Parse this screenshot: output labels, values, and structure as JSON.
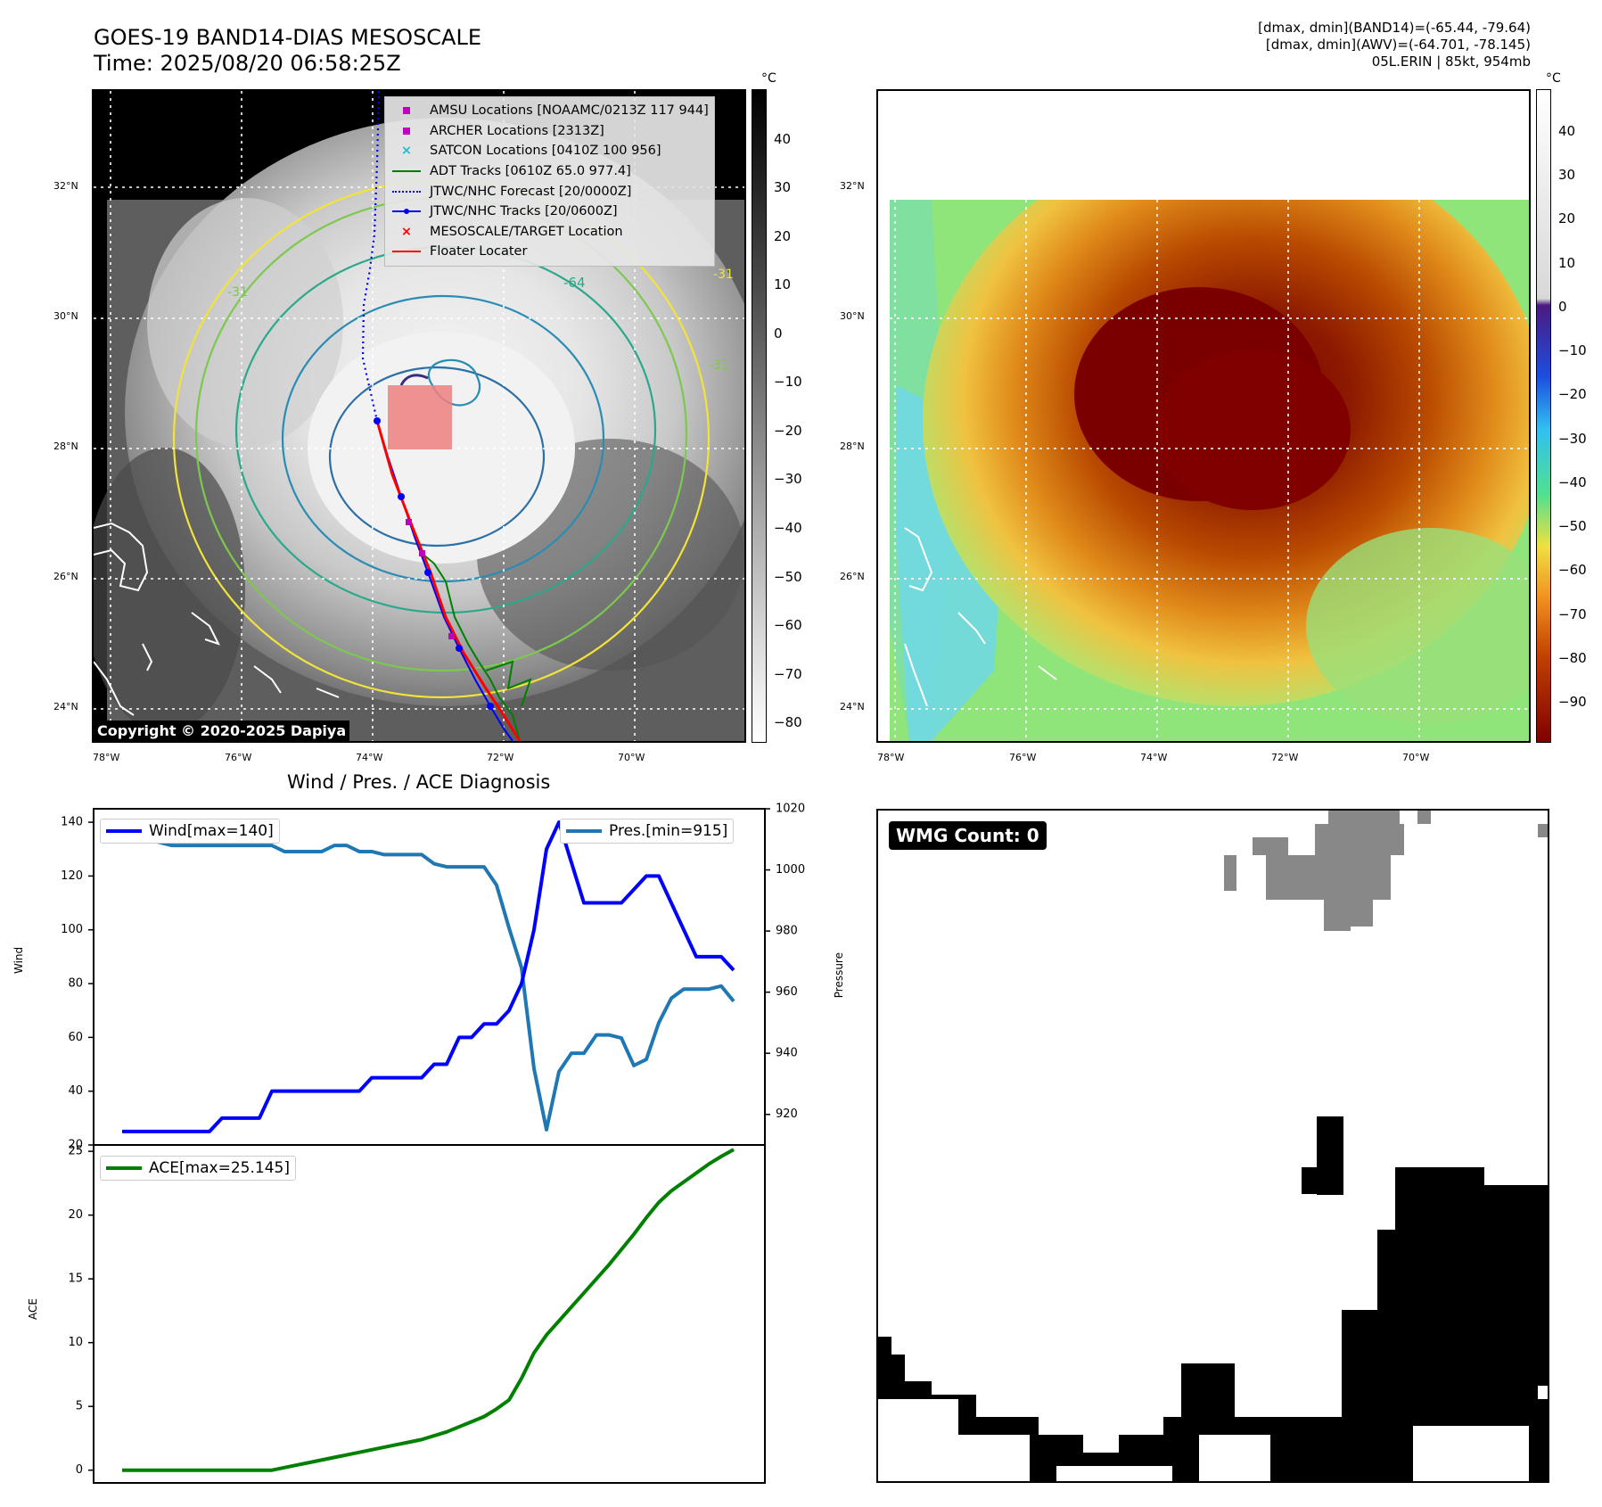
{
  "header": {
    "title_line1": "GOES-19 BAND14-DIAS MESOSCALE",
    "title_line2": "Time: 2025/08/20 06:58:25Z",
    "info_line1": "[dmax, dmin](BAND14)=(-65.44, -79.64)",
    "info_line2": "[dmax, dmin](AWV)=(-64.701, -78.145)",
    "info_line3": "05L.ERIN | 85kt, 954mb"
  },
  "map_panel": {
    "lat_labels": [
      "32°N",
      "30°N",
      "28°N",
      "26°N",
      "24°N"
    ],
    "lon_labels": [
      "78°W",
      "76°W",
      "74°W",
      "72°W",
      "70°W"
    ],
    "colorbar_unit": "°C",
    "colorbar_ticks": [
      "40",
      "30",
      "20",
      "10",
      "0",
      "−10",
      "−20",
      "−30",
      "−40",
      "−50",
      "−60",
      "−70",
      "−80"
    ],
    "copyright": "Copyright © 2020-2025 Dapiya",
    "legend": [
      {
        "label": "AMSU Locations [NOAAMC/0213Z 117 944]",
        "color": "#bf00bf",
        "symbol": "square"
      },
      {
        "label": "ARCHER Locations [2313Z]",
        "color": "#bf00bf",
        "symbol": "square"
      },
      {
        "label": "SATCON Locations [0410Z 100 956]",
        "color": "#17becf",
        "symbol": "x"
      },
      {
        "label": "ADT Tracks [0610Z 65.0 977.4]",
        "color": "#008000",
        "symbol": "line"
      },
      {
        "label": "JTWC/NHC Forecast [20/0000Z]",
        "color": "#0000ff",
        "symbol": "dotted"
      },
      {
        "label": "JTWC/NHC Tracks [20/0600Z]",
        "color": "#0000ff",
        "symbol": "line-dot"
      },
      {
        "label": "MESOSCALE/TARGET Location",
        "color": "#ff0000",
        "symbol": "x"
      },
      {
        "label": "Floater Locater",
        "color": "#ff0000",
        "symbol": "line"
      }
    ],
    "contour_labels": [
      "-64",
      "-31",
      "-31",
      "-31"
    ]
  },
  "awv_panel": {
    "lat_labels": [
      "32°N",
      "30°N",
      "28°N",
      "26°N",
      "24°N"
    ],
    "lon_labels": [
      "78°W",
      "76°W",
      "74°W",
      "72°W",
      "70°W"
    ],
    "colorbar_unit": "°C",
    "colorbar_ticks": [
      "40",
      "30",
      "20",
      "10",
      "0",
      "−10",
      "−20",
      "−30",
      "−40",
      "−50",
      "−60",
      "−70",
      "−80",
      "−90"
    ]
  },
  "wmg_panel": {
    "label": "WMG Count: 0"
  },
  "chart_data": [
    {
      "type": "line",
      "title": "Wind / Pres. / ACE Diagnosis",
      "ylabel": "Wind",
      "y2label": "Pressure",
      "ylim": [
        20,
        145
      ],
      "y2lim": [
        910,
        1020
      ],
      "yticks": [
        20,
        40,
        60,
        80,
        100,
        120,
        140
      ],
      "y2ticks": [
        920,
        940,
        960,
        980,
        1000,
        1020
      ],
      "series": [
        {
          "name": "Wind[max=140]",
          "color": "#0000ff",
          "axis": "left",
          "values": [
            25,
            25,
            25,
            25,
            25,
            25,
            25,
            25,
            30,
            30,
            30,
            30,
            40,
            40,
            40,
            40,
            40,
            40,
            40,
            40,
            45,
            45,
            45,
            45,
            45,
            50,
            50,
            60,
            60,
            65,
            65,
            70,
            80,
            100,
            130,
            140,
            125,
            110,
            110,
            110,
            110,
            115,
            120,
            120,
            110,
            100,
            90,
            90,
            90,
            85
          ]
        },
        {
          "name": "Pres.[min=915]",
          "color": "#1f77b4",
          "axis": "right",
          "values": [
            1015,
            1015,
            1010,
            1009,
            1008,
            1008,
            1008,
            1008,
            1008,
            1008,
            1008,
            1008,
            1008,
            1006,
            1006,
            1006,
            1006,
            1008,
            1008,
            1006,
            1006,
            1005,
            1005,
            1005,
            1005,
            1002,
            1001,
            1001,
            1001,
            1001,
            995,
            981,
            968,
            935,
            915,
            934,
            940,
            940,
            946,
            946,
            945,
            936,
            938,
            950,
            958,
            961,
            961,
            961,
            962,
            957
          ]
        }
      ]
    },
    {
      "type": "line",
      "ylabel": "ACE",
      "ylim": [
        -1,
        25.5
      ],
      "yticks": [
        0,
        5,
        10,
        15,
        20,
        25
      ],
      "series": [
        {
          "name": "ACE[max=25.145]",
          "color": "#008000",
          "values": [
            0,
            0,
            0,
            0,
            0,
            0,
            0,
            0,
            0,
            0,
            0,
            0,
            0,
            0.2,
            0.4,
            0.6,
            0.8,
            1.0,
            1.2,
            1.4,
            1.6,
            1.8,
            2.0,
            2.2,
            2.4,
            2.7,
            3.0,
            3.4,
            3.8,
            4.2,
            4.8,
            5.5,
            7.2,
            9.2,
            10.6,
            11.7,
            12.8,
            13.9,
            15.0,
            16.1,
            17.3,
            18.5,
            19.8,
            21.0,
            21.9,
            22.6,
            23.3,
            24.0,
            24.6,
            25.145
          ]
        }
      ]
    }
  ]
}
